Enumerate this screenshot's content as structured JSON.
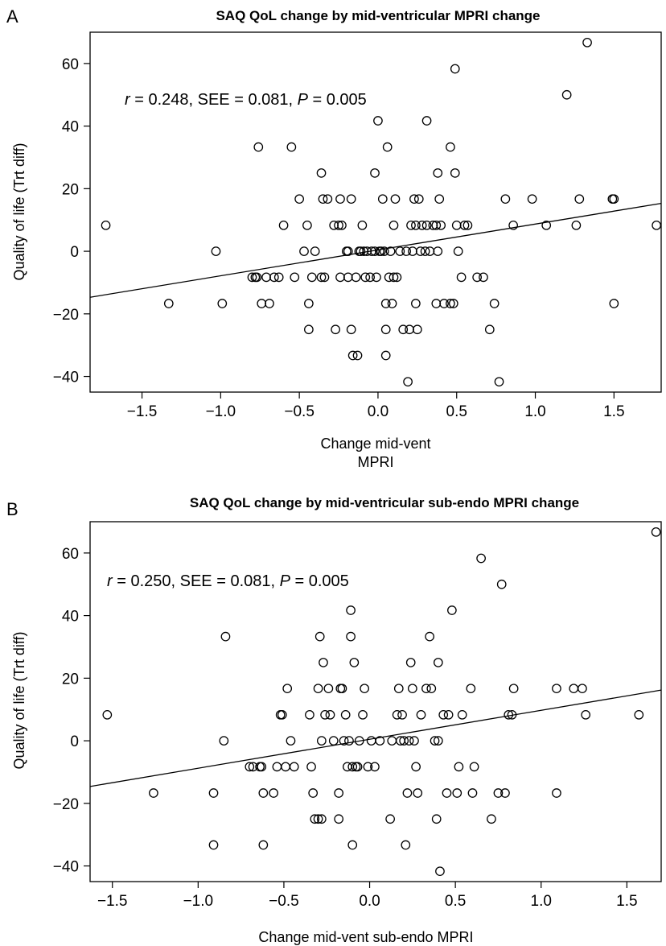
{
  "chart_data": [
    {
      "type": "scatter",
      "panel_label": "A",
      "title": "SAQ QoL change by mid-ventricular MPRI change",
      "xlabel": "Change mid-vent",
      "xlabel2": "MPRI",
      "ylabel": "Quality of life (Trt diff)",
      "annotation": {
        "r_label": "r",
        "r_value": " = 0.248, SEE = 0.081, ",
        "p_label": "P",
        "p_value": " = 0.005"
      },
      "xlim": [
        -1.83,
        1.8
      ],
      "ylim": [
        -45,
        70
      ],
      "xticks": [
        -1.5,
        -1.0,
        -0.5,
        0.0,
        0.5,
        1.0,
        1.5
      ],
      "xtick_labels": [
        "−1.5",
        "−1.0",
        "−0.5",
        "0.0",
        "0.5",
        "1.0",
        "1.5"
      ],
      "yticks": [
        -40,
        -20,
        0,
        20,
        40,
        60
      ],
      "ytick_labels": [
        "−40",
        "−20",
        "0",
        "20",
        "40",
        "60"
      ],
      "grid": false,
      "regression": {
        "x": [
          -1.83,
          1.8
        ],
        "y": [
          -14.7,
          15.3
        ]
      },
      "points": [
        [
          -1.73,
          8.3
        ],
        [
          -1.33,
          -16.7
        ],
        [
          -1.03,
          0
        ],
        [
          -0.99,
          -16.7
        ],
        [
          -0.8,
          -8.3
        ],
        [
          -0.78,
          -8.3
        ],
        [
          -0.77,
          -8.3
        ],
        [
          -0.76,
          33.3
        ],
        [
          -0.74,
          -16.7
        ],
        [
          -0.71,
          -8.3
        ],
        [
          -0.69,
          -16.7
        ],
        [
          -0.66,
          -8.3
        ],
        [
          -0.63,
          -8.3
        ],
        [
          -0.6,
          8.3
        ],
        [
          -0.55,
          33.3
        ],
        [
          -0.53,
          -8.3
        ],
        [
          -0.5,
          16.7
        ],
        [
          -0.47,
          0
        ],
        [
          -0.45,
          8.3
        ],
        [
          -0.44,
          -16.7
        ],
        [
          -0.44,
          -25
        ],
        [
          -0.42,
          -8.3
        ],
        [
          -0.4,
          0
        ],
        [
          -0.36,
          -8.3
        ],
        [
          -0.36,
          25
        ],
        [
          -0.35,
          16.7
        ],
        [
          -0.34,
          -8.3
        ],
        [
          -0.32,
          16.7
        ],
        [
          -0.28,
          8.3
        ],
        [
          -0.27,
          -25
        ],
        [
          -0.25,
          8.3
        ],
        [
          -0.24,
          16.7
        ],
        [
          -0.24,
          -8.3
        ],
        [
          -0.23,
          8.3
        ],
        [
          -0.2,
          0
        ],
        [
          -0.19,
          -8.3
        ],
        [
          -0.19,
          0
        ],
        [
          -0.17,
          16.7
        ],
        [
          -0.17,
          -25
        ],
        [
          -0.16,
          -33.3
        ],
        [
          -0.14,
          -8.3
        ],
        [
          -0.13,
          -33.3
        ],
        [
          -0.12,
          0
        ],
        [
          -0.11,
          0
        ],
        [
          -0.1,
          8.3
        ],
        [
          -0.09,
          0
        ],
        [
          -0.08,
          -8.3
        ],
        [
          -0.07,
          0
        ],
        [
          -0.05,
          -8.3
        ],
        [
          -0.04,
          0
        ],
        [
          -0.02,
          0
        ],
        [
          -0.02,
          25
        ],
        [
          -0.01,
          -8.3
        ],
        [
          0.0,
          41.7
        ],
        [
          0.01,
          0
        ],
        [
          0.02,
          0
        ],
        [
          0.03,
          16.7
        ],
        [
          0.04,
          0
        ],
        [
          0.05,
          -16.7
        ],
        [
          0.05,
          -25
        ],
        [
          0.05,
          -33.3
        ],
        [
          0.06,
          33.3
        ],
        [
          0.07,
          -8.3
        ],
        [
          0.08,
          0
        ],
        [
          0.09,
          -16.7
        ],
        [
          0.1,
          8.3
        ],
        [
          0.1,
          -8.3
        ],
        [
          0.11,
          16.7
        ],
        [
          0.12,
          -8.3
        ],
        [
          0.14,
          0
        ],
        [
          0.16,
          -25
        ],
        [
          0.18,
          0
        ],
        [
          0.19,
          -41.7
        ],
        [
          0.2,
          -25
        ],
        [
          0.21,
          8.3
        ],
        [
          0.22,
          0
        ],
        [
          0.23,
          16.7
        ],
        [
          0.24,
          -16.7
        ],
        [
          0.24,
          8.3
        ],
        [
          0.25,
          -25
        ],
        [
          0.26,
          16.7
        ],
        [
          0.27,
          0
        ],
        [
          0.28,
          8.3
        ],
        [
          0.3,
          0
        ],
        [
          0.31,
          8.3
        ],
        [
          0.31,
          41.7
        ],
        [
          0.33,
          0
        ],
        [
          0.35,
          8.3
        ],
        [
          0.37,
          -16.7
        ],
        [
          0.37,
          8.3
        ],
        [
          0.38,
          25
        ],
        [
          0.38,
          0
        ],
        [
          0.39,
          16.7
        ],
        [
          0.4,
          8.3
        ],
        [
          0.42,
          -16.7
        ],
        [
          0.46,
          -16.7
        ],
        [
          0.46,
          33.3
        ],
        [
          0.48,
          -16.7
        ],
        [
          0.49,
          58.3
        ],
        [
          0.49,
          25
        ],
        [
          0.5,
          8.3
        ],
        [
          0.51,
          0
        ],
        [
          0.53,
          -8.3
        ],
        [
          0.55,
          8.3
        ],
        [
          0.57,
          8.3
        ],
        [
          0.63,
          -8.3
        ],
        [
          0.67,
          -8.3
        ],
        [
          0.71,
          -25
        ],
        [
          0.74,
          -16.7
        ],
        [
          0.77,
          -41.7
        ],
        [
          0.81,
          16.7
        ],
        [
          0.86,
          8.3
        ],
        [
          0.98,
          16.7
        ],
        [
          1.07,
          8.3
        ],
        [
          1.2,
          50
        ],
        [
          1.26,
          8.3
        ],
        [
          1.28,
          16.7
        ],
        [
          1.33,
          66.7
        ],
        [
          1.49,
          16.7
        ],
        [
          1.5,
          16.7
        ],
        [
          1.5,
          -16.7
        ],
        [
          1.77,
          8.3
        ]
      ]
    },
    {
      "type": "scatter",
      "panel_label": "B",
      "title": "SAQ QoL change by mid-ventricular sub-endo MPRI change",
      "xlabel": "Change mid-vent sub-endo MPRI",
      "xlabel2": "",
      "ylabel": "Quality of life (Trt diff)",
      "annotation": {
        "r_label": "r",
        "r_value": " = 0.250, SEE = 0.081, ",
        "p_label": "P",
        "p_value": " = 0.005"
      },
      "xlim": [
        -1.63,
        1.7
      ],
      "ylim": [
        -45,
        70
      ],
      "xticks": [
        -1.5,
        -1.0,
        -0.5,
        0.0,
        0.5,
        1.0,
        1.5
      ],
      "xtick_labels": [
        "−1.5",
        "−1.0",
        "−0.5",
        "0.0",
        "0.5",
        "1.0",
        "1.5"
      ],
      "yticks": [
        -40,
        -20,
        0,
        20,
        40,
        60
      ],
      "ytick_labels": [
        "−40",
        "−20",
        "0",
        "20",
        "40",
        "60"
      ],
      "grid": false,
      "regression": {
        "x": [
          -1.63,
          1.7
        ],
        "y": [
          -14.6,
          16.2
        ]
      },
      "points": [
        [
          -1.53,
          8.3
        ],
        [
          -1.26,
          -16.7
        ],
        [
          -0.91,
          -16.7
        ],
        [
          -0.91,
          -33.3
        ],
        [
          -0.85,
          0
        ],
        [
          -0.84,
          33.3
        ],
        [
          -0.7,
          -8.3
        ],
        [
          -0.68,
          -8.3
        ],
        [
          -0.64,
          -8.3
        ],
        [
          -0.63,
          -8.3
        ],
        [
          -0.62,
          -33.3
        ],
        [
          -0.62,
          -16.7
        ],
        [
          -0.56,
          -16.7
        ],
        [
          -0.54,
          -8.3
        ],
        [
          -0.52,
          8.3
        ],
        [
          -0.51,
          8.3
        ],
        [
          -0.49,
          -8.3
        ],
        [
          -0.48,
          16.7
        ],
        [
          -0.46,
          0
        ],
        [
          -0.44,
          -8.3
        ],
        [
          -0.35,
          8.3
        ],
        [
          -0.34,
          -8.3
        ],
        [
          -0.33,
          -16.7
        ],
        [
          -0.32,
          -25
        ],
        [
          -0.3,
          16.7
        ],
        [
          -0.3,
          -25
        ],
        [
          -0.29,
          33.3
        ],
        [
          -0.28,
          0
        ],
        [
          -0.28,
          -25
        ],
        [
          -0.27,
          25
        ],
        [
          -0.26,
          8.3
        ],
        [
          -0.24,
          16.7
        ],
        [
          -0.23,
          8.3
        ],
        [
          -0.21,
          0
        ],
        [
          -0.18,
          -16.7
        ],
        [
          -0.18,
          -25
        ],
        [
          -0.17,
          16.7
        ],
        [
          -0.16,
          16.7
        ],
        [
          -0.15,
          0
        ],
        [
          -0.14,
          8.3
        ],
        [
          -0.13,
          -8.3
        ],
        [
          -0.12,
          0
        ],
        [
          -0.11,
          41.7
        ],
        [
          -0.11,
          33.3
        ],
        [
          -0.1,
          -33.3
        ],
        [
          -0.1,
          -8.3
        ],
        [
          -0.09,
          25
        ],
        [
          -0.08,
          -8.3
        ],
        [
          -0.07,
          -8.3
        ],
        [
          -0.06,
          0
        ],
        [
          -0.04,
          8.3
        ],
        [
          -0.03,
          16.7
        ],
        [
          -0.01,
          -8.3
        ],
        [
          0.01,
          0
        ],
        [
          0.03,
          -8.3
        ],
        [
          0.06,
          0
        ],
        [
          0.12,
          -25
        ],
        [
          0.13,
          0
        ],
        [
          0.16,
          8.3
        ],
        [
          0.17,
          16.7
        ],
        [
          0.18,
          0
        ],
        [
          0.19,
          8.3
        ],
        [
          0.2,
          0
        ],
        [
          0.21,
          -33.3
        ],
        [
          0.22,
          -16.7
        ],
        [
          0.23,
          0
        ],
        [
          0.24,
          25
        ],
        [
          0.25,
          16.7
        ],
        [
          0.26,
          0
        ],
        [
          0.27,
          -8.3
        ],
        [
          0.28,
          -16.7
        ],
        [
          0.3,
          8.3
        ],
        [
          0.33,
          16.7
        ],
        [
          0.35,
          33.3
        ],
        [
          0.36,
          16.7
        ],
        [
          0.38,
          0
        ],
        [
          0.39,
          -25
        ],
        [
          0.4,
          0
        ],
        [
          0.4,
          25
        ],
        [
          0.41,
          -41.7
        ],
        [
          0.43,
          8.3
        ],
        [
          0.45,
          -16.7
        ],
        [
          0.46,
          8.3
        ],
        [
          0.48,
          41.7
        ],
        [
          0.51,
          -16.7
        ],
        [
          0.52,
          -8.3
        ],
        [
          0.54,
          8.3
        ],
        [
          0.59,
          16.7
        ],
        [
          0.6,
          -16.7
        ],
        [
          0.61,
          -8.3
        ],
        [
          0.65,
          58.3
        ],
        [
          0.71,
          -25
        ],
        [
          0.75,
          -16.7
        ],
        [
          0.77,
          50
        ],
        [
          0.79,
          -16.7
        ],
        [
          0.81,
          8.3
        ],
        [
          0.83,
          8.3
        ],
        [
          0.84,
          16.7
        ],
        [
          1.09,
          16.7
        ],
        [
          1.09,
          -16.7
        ],
        [
          1.19,
          16.7
        ],
        [
          1.24,
          16.7
        ],
        [
          1.26,
          8.3
        ],
        [
          1.57,
          8.3
        ],
        [
          1.67,
          66.7
        ]
      ]
    }
  ]
}
